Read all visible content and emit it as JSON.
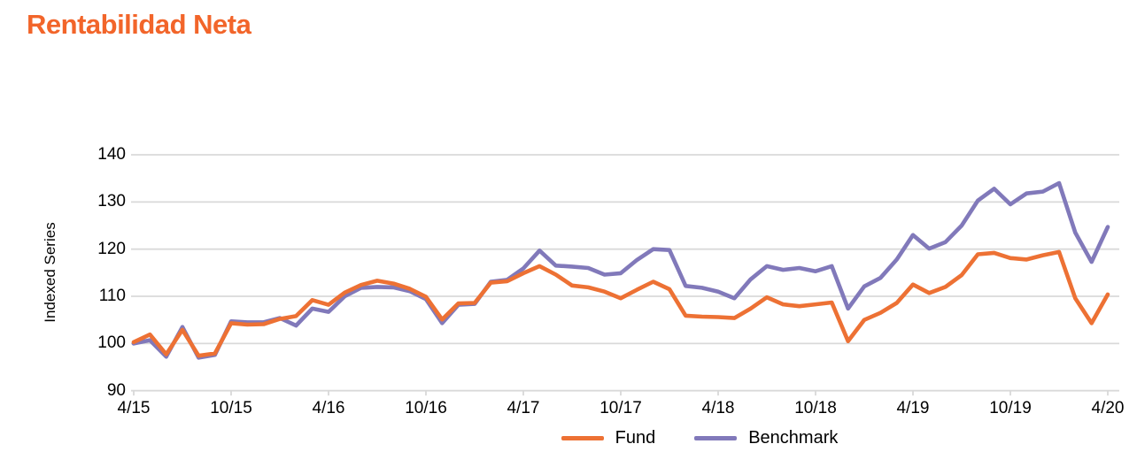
{
  "page": {
    "title": "Rentabilidad Neta",
    "title_color": "#F2652A",
    "background": "#FFFFFF",
    "gridline_color": "#D9D9D9",
    "text_color": "#000000"
  },
  "chart_data": {
    "type": "line",
    "title": "Rentabilidad Neta",
    "xlabel": "",
    "ylabel": "Indexed Series",
    "ylim": [
      90,
      140
    ],
    "y_ticks": [
      140,
      130,
      120,
      110,
      100,
      90
    ],
    "x_tick_labels": [
      "4/15",
      "10/15",
      "4/16",
      "10/16",
      "4/17",
      "10/17",
      "4/18",
      "10/18",
      "4/19",
      "10/19",
      "4/20"
    ],
    "grid": "horizontal",
    "legend_position": "bottom-center",
    "x": [
      "4/15",
      "5/15",
      "6/15",
      "7/15",
      "8/15",
      "9/15",
      "10/15",
      "11/15",
      "12/15",
      "1/16",
      "2/16",
      "3/16",
      "4/16",
      "5/16",
      "6/16",
      "7/16",
      "8/16",
      "9/16",
      "10/16",
      "11/16",
      "12/16",
      "1/17",
      "2/17",
      "3/17",
      "4/17",
      "5/17",
      "6/17",
      "7/17",
      "8/17",
      "9/17",
      "10/17",
      "11/17",
      "12/17",
      "1/18",
      "2/18",
      "3/18",
      "4/18",
      "5/18",
      "6/18",
      "7/18",
      "8/18",
      "9/18",
      "10/18",
      "11/18",
      "12/18",
      "1/19",
      "2/19",
      "3/19",
      "4/19",
      "5/19",
      "6/19",
      "7/19",
      "8/19",
      "9/19",
      "10/19",
      "11/19",
      "12/19",
      "1/20",
      "2/20",
      "3/20",
      "4/20"
    ],
    "series": [
      {
        "name": "Fund",
        "color": "#ED7134",
        "values": [
          100.3,
          101.9,
          97.7,
          102.9,
          97.4,
          97.9,
          104.3,
          104.0,
          104.1,
          105.2,
          105.8,
          109.2,
          108.2,
          110.8,
          112.4,
          113.3,
          112.7,
          111.6,
          109.9,
          105.1,
          108.5,
          108.6,
          112.9,
          113.2,
          114.9,
          116.4,
          114.6,
          112.3,
          111.9,
          111.0,
          109.6,
          111.4,
          113.1,
          111.5,
          105.9,
          105.7,
          105.6,
          105.4,
          107.4,
          109.8,
          108.3,
          107.9,
          108.3,
          108.7,
          100.5,
          105.0,
          106.5,
          108.6,
          112.5,
          110.7,
          112.0,
          114.5,
          118.9,
          119.2,
          118.1,
          117.8,
          118.7,
          119.4,
          109.6,
          104.3,
          110.4
        ]
      },
      {
        "name": "Benchmark",
        "color": "#8179BA",
        "values": [
          100.0,
          100.7,
          97.2,
          103.5,
          97.0,
          97.6,
          104.7,
          104.5,
          104.5,
          105.4,
          103.8,
          107.4,
          106.7,
          110.0,
          111.8,
          112.0,
          111.9,
          111.1,
          109.4,
          104.3,
          108.2,
          108.4,
          113.1,
          113.5,
          115.9,
          119.7,
          116.5,
          116.3,
          116.0,
          114.6,
          114.9,
          117.7,
          120.0,
          119.8,
          112.2,
          111.8,
          111.0,
          109.6,
          113.6,
          116.4,
          115.6,
          116.0,
          115.3,
          116.4,
          107.4,
          112.1,
          113.9,
          117.8,
          123.0,
          120.1,
          121.5,
          125.0,
          130.3,
          132.8,
          129.5,
          131.8,
          132.2,
          134.0,
          123.5,
          117.3,
          124.7
        ]
      }
    ]
  }
}
